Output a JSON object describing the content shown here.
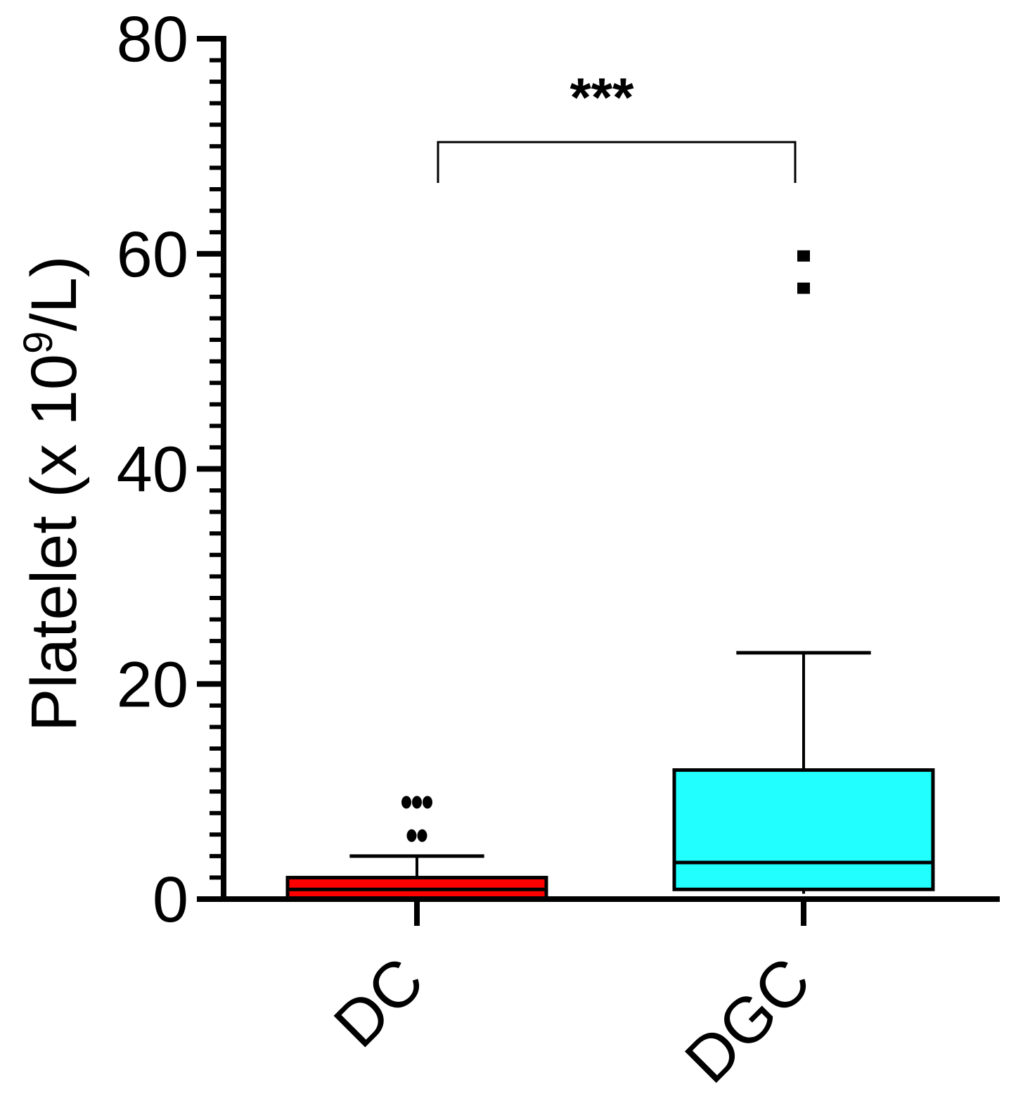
{
  "chart_data": {
    "type": "box",
    "title": "",
    "xlabel": "",
    "ylabel": "Platelet (x 10",
    "ylabel_sup": "9",
    "ylabel_tail": "/L)",
    "ylim": [
      0,
      80
    ],
    "yticks": [
      0,
      20,
      40,
      60,
      80
    ],
    "minor_tick_step": 2,
    "grid": false,
    "categories": [
      "DC",
      "DGC"
    ],
    "series": [
      {
        "name": "DC",
        "color": "#ff0000",
        "whisker_low": 0.1,
        "q1": 0.1,
        "median": 0.9,
        "q3": 2.0,
        "whisker_high": 4.0,
        "outliers": [
          5.9,
          5.9,
          9.0,
          9.0,
          9.0
        ]
      },
      {
        "name": "DGC",
        "color": "#22ffff",
        "whisker_low": 0.5,
        "q1": 0.9,
        "median": 3.4,
        "q3": 12.0,
        "whisker_high": 22.9,
        "outliers": [
          56.8,
          59.8
        ]
      }
    ],
    "annotations": [
      {
        "text": "***",
        "between": [
          "DC",
          "DGC"
        ]
      }
    ]
  }
}
